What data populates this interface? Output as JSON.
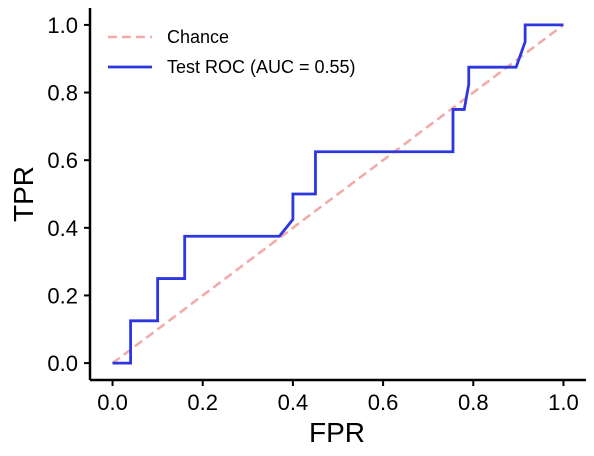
{
  "chart_data": {
    "type": "line",
    "title": "",
    "xlabel": "FPR",
    "ylabel": "TPR",
    "xlim": [
      -0.05,
      1.05
    ],
    "ylim": [
      -0.05,
      1.05
    ],
    "xticks": [
      "0.0",
      "0.2",
      "0.4",
      "0.6",
      "0.8",
      "1.0"
    ],
    "yticks": [
      "0.0",
      "0.2",
      "0.4",
      "0.6",
      "0.8",
      "1.0"
    ],
    "grid": false,
    "legend_position": "top-left",
    "series": [
      {
        "name": "Chance",
        "style": "dashed",
        "color": "#f4a9a9",
        "x": [
          0.0,
          1.0
        ],
        "y": [
          0.0,
          1.0
        ]
      },
      {
        "name": "Test ROC (AUC = 0.55)",
        "style": "solid",
        "color": "#2e36e0",
        "x": [
          0.0,
          0.04,
          0.04,
          0.1,
          0.1,
          0.16,
          0.16,
          0.37,
          0.4,
          0.4,
          0.45,
          0.45,
          0.755,
          0.755,
          0.78,
          0.79,
          0.79,
          0.895,
          0.915,
          0.915,
          1.0
        ],
        "y": [
          0.0,
          0.0,
          0.125,
          0.125,
          0.25,
          0.25,
          0.375,
          0.375,
          0.425,
          0.5,
          0.5,
          0.625,
          0.625,
          0.75,
          0.75,
          0.825,
          0.875,
          0.875,
          0.95,
          1.0,
          1.0
        ]
      }
    ]
  }
}
